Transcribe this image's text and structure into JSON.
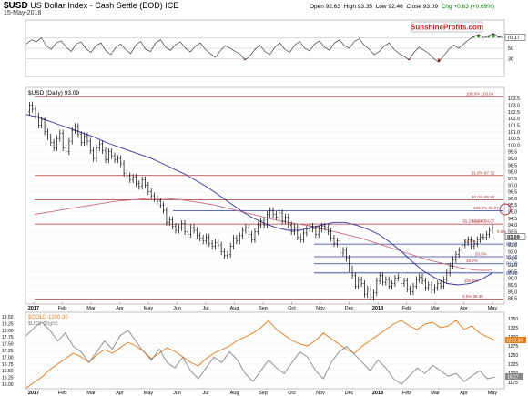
{
  "header": {
    "symbol": "$USD",
    "description": "US Dollar Index - Cash Settle (EOD) ICE",
    "date": "15-May-2018",
    "open": "Open 92.63",
    "high": "High 93.35",
    "low": "Low 92.46",
    "close": "Close 93.09",
    "chg": "Chg +0.63 (+0.69%)"
  },
  "watermark": "SunshineProfits.com",
  "colors": {
    "price": "#000000",
    "ma_short": "#333399",
    "ma_long": "#c46a7a",
    "horizontal_red": "#b0303a",
    "horizontal_blue": "#2e3a9a",
    "rsi_overbought_fill": "#3a8c3a",
    "rsi_oversold_fill": "#b03030",
    "gold_line": "#e07a1a",
    "usd_ratio_line": "#888888"
  },
  "chart_data": [
    {
      "type": "line",
      "panel": "rsi",
      "ylim": [
        0,
        100
      ],
      "y_ticks": [
        "70",
        "50",
        "30"
      ],
      "last_value_label": "70.17",
      "series": [
        {
          "values": [
            58,
            66,
            62,
            70,
            55,
            48,
            60,
            64,
            52,
            44,
            58,
            62,
            49,
            42,
            55,
            60,
            45,
            38,
            52,
            58,
            47,
            40,
            56,
            63,
            48,
            44,
            60,
            66,
            52,
            46,
            57,
            62,
            50,
            43,
            54,
            60,
            48,
            40,
            33,
            45,
            55,
            50,
            44,
            39,
            28,
            35,
            48,
            56,
            44,
            38,
            52,
            60,
            48,
            42,
            56,
            63,
            50,
            45,
            58,
            64,
            52,
            46,
            60,
            66,
            55,
            50,
            63,
            68,
            56,
            48,
            38,
            44,
            54,
            60,
            48,
            40,
            35,
            28,
            42,
            52,
            46,
            40,
            30,
            24,
            36,
            48,
            56,
            50,
            58,
            66,
            72,
            76,
            70,
            74,
            78,
            72,
            70
          ]
        }
      ]
    },
    {
      "type": "line",
      "panel": "price",
      "title": "$USD (Daily) 93.09",
      "x_tick_labels": [
        "2017",
        "Feb",
        "Mar",
        "Apr",
        "May",
        "Jun",
        "Jul",
        "Aug",
        "Sep",
        "Oct",
        "Nov",
        "Dec",
        "2018",
        "Feb",
        "Mar",
        "Apr",
        "May"
      ],
      "y_tick_labels": [
        "103.5",
        "103.0",
        "102.5",
        "102.0",
        "101.5",
        "101.0",
        "100.5",
        "100.0",
        "99.5",
        "99.0",
        "98.5",
        "98.0",
        "97.5",
        "97.0",
        "96.5",
        "96.0",
        "95.5",
        "95.0",
        "94.5",
        "94.0",
        "93.5",
        "93.0",
        "92.5",
        "92.0",
        "91.5",
        "91.0",
        "90.5",
        "90.0",
        "89.5",
        "89.0",
        "88.5"
      ],
      "ylim": [
        88.2,
        104.2
      ],
      "last_value_label": "93.09",
      "price_labels_right": [
        "92.57",
        "91.62",
        "91.09",
        "90.40"
      ],
      "series": [
        {
          "name": "$USD",
          "x": [
            0,
            3,
            6,
            9,
            12,
            15,
            18,
            21,
            24,
            27,
            30,
            33,
            36,
            39,
            42,
            45,
            48,
            51,
            54,
            57,
            60,
            63,
            66,
            69,
            72,
            75,
            78,
            81,
            84,
            87,
            90,
            93,
            96,
            99,
            102,
            105,
            108,
            111,
            114,
            117,
            120,
            123,
            126,
            129,
            132,
            135,
            138,
            141,
            144,
            147,
            150,
            153,
            156,
            159,
            162,
            165,
            168,
            171,
            174,
            177,
            180,
            183,
            186,
            189,
            192,
            195,
            198,
            201,
            204,
            207,
            210,
            213,
            216,
            219,
            222,
            225,
            228,
            231,
            234,
            237,
            240,
            243,
            246,
            249,
            252,
            255,
            258,
            261,
            264,
            267,
            270,
            273,
            276,
            279,
            282,
            285,
            288,
            291,
            294,
            297,
            300,
            303,
            306,
            309,
            312,
            315,
            318,
            321,
            324,
            327,
            330,
            333,
            336,
            339,
            342,
            345,
            348,
            351,
            354,
            357,
            360,
            363,
            366,
            369,
            372,
            375,
            378,
            381,
            384,
            387,
            390,
            393,
            396,
            399,
            402,
            405,
            408,
            411,
            414,
            417,
            420,
            423,
            426,
            429,
            432,
            435,
            438,
            441,
            444,
            447,
            450,
            453,
            456,
            459,
            462,
            465,
            468,
            471,
            474,
            477,
            480,
            483,
            486,
            489,
            492,
            495,
            498,
            501
          ],
          "values": [
            102.5,
            103.0,
            102.7,
            102.2,
            101.5,
            101.9,
            101.0,
            100.6,
            100.2,
            99.8,
            100.5,
            100.9,
            99.8,
            99.5,
            100.3,
            101.1,
            101.4,
            100.8,
            100.2,
            100.7,
            100.3,
            99.6,
            99.0,
            99.8,
            100.1,
            99.6,
            98.9,
            99.5,
            99.2,
            98.9,
            99.0,
            98.6,
            97.9,
            97.7,
            97.4,
            97.6,
            97.1,
            96.9,
            97.4,
            97.0,
            96.5,
            96.2,
            96.0,
            95.8,
            95.5,
            95.1,
            94.2,
            94.4,
            93.9,
            93.6,
            93.8,
            94.1,
            93.5,
            93.3,
            93.8,
            93.6,
            93.2,
            93.0,
            92.8,
            93.1,
            92.6,
            92.4,
            92.7,
            92.5,
            92.0,
            91.7,
            91.8,
            92.4,
            93.0,
            92.8,
            93.2,
            93.6,
            93.8,
            93.3,
            92.9,
            93.5,
            94.0,
            94.3,
            94.0,
            94.8,
            95.1,
            94.8,
            94.6,
            94.9,
            94.3,
            94.6,
            94.0,
            93.5,
            93.8,
            93.1,
            92.9,
            93.4,
            93.7,
            93.9,
            93.7,
            93.3,
            93.7,
            93.9,
            93.8,
            93.5,
            93.0,
            92.6,
            92.8,
            91.9,
            92.1,
            91.5,
            90.7,
            90.2,
            89.4,
            89.9,
            89.6,
            88.8,
            89.2,
            88.6,
            88.9,
            89.8,
            90.2,
            89.7,
            89.9,
            89.4,
            89.6,
            90.0,
            90.1,
            89.6,
            89.8,
            89.2,
            89.0,
            89.4,
            89.9,
            90.1,
            89.8,
            89.3,
            89.5,
            89.1,
            89.3,
            89.6,
            89.4,
            89.9,
            90.4,
            90.9,
            91.4,
            91.8,
            92.1,
            92.5,
            92.7,
            92.9,
            92.4,
            92.6,
            92.9,
            93.1,
            93.09,
            93.3,
            93.6,
            93.8,
            93.09,
            93.09,
            93.09,
            93.09,
            93.09,
            93.09,
            93.09,
            93.09,
            93.09,
            93.09,
            93.09,
            93.09,
            93.09,
            93.09
          ]
        },
        {
          "values": [
            102.3,
            102.1,
            101.8,
            101.5,
            101.2,
            100.9,
            100.6,
            100.2,
            99.9,
            99.6,
            99.3,
            99.0,
            98.6,
            98.2,
            97.8,
            97.3,
            96.8,
            96.2,
            95.6,
            95.0,
            94.5,
            94.1,
            93.8,
            93.6,
            93.6,
            93.8,
            94.0,
            94.2,
            94.2,
            94.0,
            93.7,
            93.3,
            92.7,
            92.0,
            91.2,
            90.5,
            90.0,
            89.6,
            89.5,
            89.6,
            89.9,
            90.4
          ]
        },
        {
          "values": [
            94.8,
            95.0,
            95.2,
            95.4,
            95.6,
            95.8,
            95.9,
            96.0,
            96.0,
            95.9,
            95.7,
            95.5,
            95.2,
            94.9,
            94.6,
            94.3,
            94.1,
            93.9,
            93.6,
            93.3,
            93.0,
            92.6,
            92.2,
            91.8,
            91.4,
            91.1,
            90.8,
            90.6,
            90.6
          ]
        }
      ],
      "fibonacci_labels": [
        "100.0% 103.64",
        "61.8% 97.72",
        "50.0% 95.90",
        "38.2% 94.07",
        "100.0% 95.07",
        "38.2% 94.07",
        "0.0%",
        "61.8%",
        "50.0%",
        "38.2%",
        "100.0%",
        "0.0% 88.45"
      ]
    },
    {
      "type": "line",
      "panel": "gold",
      "title": "$GOLD 1290.30",
      "legend_secondary": "$USD (Right)",
      "y_left_ticks": [
        "18.50",
        "18.25",
        "18.00",
        "17.75",
        "17.50",
        "17.25",
        "17.00",
        "16.75",
        "16.50",
        "16.25",
        "16.00"
      ],
      "y_right_ticks": [
        "1350",
        "1325",
        "1300",
        "1275",
        "1250",
        "1225",
        "1200",
        "1175"
      ],
      "last_value_labels": [
        "1290.30",
        "16.27"
      ],
      "x_tick_labels": [
        "2017",
        "Feb",
        "Mar",
        "Apr",
        "May",
        "Jun",
        "Jul",
        "Aug",
        "Sep",
        "Oct",
        "Nov",
        "Dec",
        "2018",
        "Feb",
        "Mar",
        "Apr",
        "May"
      ],
      "series": [
        {
          "name": "$GOLD",
          "values": [
            1160,
            1175,
            1190,
            1210,
            1225,
            1240,
            1255,
            1245,
            1230,
            1250,
            1265,
            1255,
            1270,
            1285,
            1275,
            1260,
            1240,
            1255,
            1270,
            1260,
            1245,
            1230,
            1220,
            1240,
            1255,
            1265,
            1275,
            1290,
            1300,
            1310,
            1325,
            1345,
            1320,
            1305,
            1290,
            1280,
            1275,
            1290,
            1310,
            1295,
            1280,
            1265,
            1255,
            1275,
            1290,
            1305,
            1320,
            1335,
            1345,
            1330,
            1320,
            1335,
            1340,
            1325,
            1330,
            1345,
            1320,
            1330,
            1310,
            1300,
            1290
          ]
        },
        {
          "name": "$USD (Right)",
          "values": [
            17.8,
            18.1,
            18.3,
            18.0,
            17.6,
            17.9,
            17.4,
            17.2,
            16.8,
            17.2,
            17.6,
            17.3,
            17.8,
            18.0,
            17.6,
            17.2,
            16.9,
            17.3,
            16.8,
            16.6,
            17.0,
            16.5,
            16.2,
            16.6,
            17.0,
            16.8,
            17.2,
            16.9,
            16.4,
            16.1,
            16.5,
            16.9,
            16.6,
            16.4,
            16.8,
            17.2,
            17.0,
            16.5,
            16.2,
            16.8,
            17.2,
            17.4,
            17.1,
            16.8,
            16.5,
            16.9,
            16.6,
            16.2,
            16.0,
            16.3,
            16.6,
            16.4,
            16.7,
            16.5,
            16.3,
            16.4,
            16.1,
            16.3,
            16.5,
            16.2,
            16.27
          ]
        }
      ]
    }
  ]
}
